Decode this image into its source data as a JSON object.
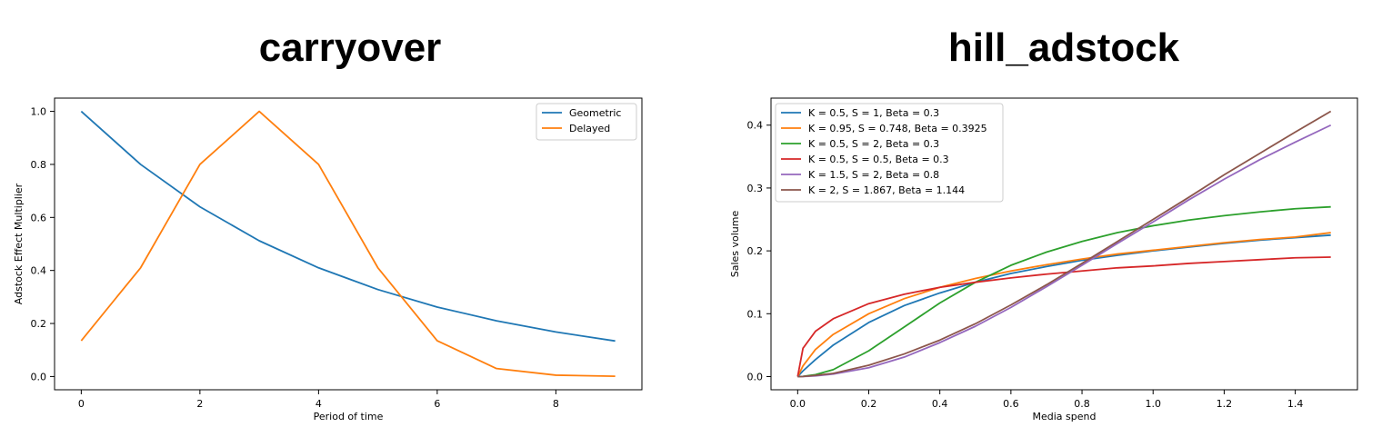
{
  "chart_data": [
    {
      "type": "line",
      "title": "carryover",
      "xlabel": "Period of time",
      "ylabel": "Adstock Effect Multiplier",
      "xlim": [
        -0.45,
        9.45
      ],
      "ylim": [
        -0.05,
        1.05
      ],
      "xticks": [
        0,
        2,
        4,
        6,
        8
      ],
      "xtick_labels": [
        "0",
        "2",
        "4",
        "6",
        "8"
      ],
      "yticks": [
        0,
        0.2,
        0.4,
        0.6,
        0.8,
        1.0
      ],
      "ytick_labels": [
        "0.0",
        "0.2",
        "0.4",
        "0.6",
        "0.8",
        "1.0"
      ],
      "grid": false,
      "legend_position": "top-right",
      "series": [
        {
          "name": "Geometric",
          "color": "#1f77b4",
          "x": [
            0,
            1,
            2,
            3,
            4,
            5,
            6,
            7,
            8,
            9
          ],
          "y": [
            1.0,
            0.8,
            0.64,
            0.512,
            0.41,
            0.328,
            0.262,
            0.21,
            0.168,
            0.134
          ]
        },
        {
          "name": "Delayed",
          "color": "#ff7f0e",
          "x": [
            0,
            1,
            2,
            3,
            4,
            5,
            6,
            7,
            8,
            9
          ],
          "y": [
            0.135,
            0.41,
            0.8,
            1.0,
            0.8,
            0.41,
            0.135,
            0.03,
            0.005,
            0.001
          ]
        }
      ]
    },
    {
      "type": "line",
      "title": "hill_adstock",
      "xlabel": "Media spend",
      "ylabel": "Sales volume",
      "xlim": [
        -0.075,
        1.575
      ],
      "ylim": [
        -0.021,
        0.443
      ],
      "xticks": [
        0,
        0.2,
        0.4,
        0.6,
        0.8,
        1.0,
        1.2,
        1.4
      ],
      "xtick_labels": [
        "0.0",
        "0.2",
        "0.4",
        "0.6",
        "0.8",
        "1.0",
        "1.2",
        "1.4"
      ],
      "yticks": [
        0,
        0.1,
        0.2,
        0.3,
        0.4
      ],
      "ytick_labels": [
        "0.0",
        "0.1",
        "0.2",
        "0.3",
        "0.4"
      ],
      "grid": false,
      "legend_position": "top-left",
      "x": [
        0,
        0.015,
        0.05,
        0.1,
        0.2,
        0.3,
        0.4,
        0.5,
        0.6,
        0.7,
        0.8,
        0.9,
        1.0,
        1.1,
        1.2,
        1.3,
        1.4,
        1.5
      ],
      "series": [
        {
          "name": "K = 0.5, S = 1, Beta = 0.3",
          "color": "#1f77b4",
          "y": [
            0,
            0.009,
            0.027,
            0.05,
            0.086,
            0.113,
            0.133,
            0.15,
            0.164,
            0.175,
            0.185,
            0.193,
            0.2,
            0.206,
            0.212,
            0.217,
            0.221,
            0.225
          ]
        },
        {
          "name": "K = 0.95, S = 0.748, Beta = 0.3925",
          "color": "#ff7f0e",
          "y": [
            0,
            0.017,
            0.043,
            0.067,
            0.1,
            0.124,
            0.142,
            0.156,
            0.168,
            0.178,
            0.187,
            0.195,
            0.201,
            0.207,
            0.213,
            0.218,
            0.222,
            0.229
          ]
        },
        {
          "name": "K = 0.5, S = 2, Beta = 0.3",
          "color": "#2ca02c",
          "y": [
            0,
            0.0003,
            0.003,
            0.011,
            0.041,
            0.079,
            0.117,
            0.15,
            0.177,
            0.198,
            0.215,
            0.229,
            0.24,
            0.249,
            0.256,
            0.262,
            0.267,
            0.27
          ]
        },
        {
          "name": "K = 0.5, S = 0.5, Beta = 0.3",
          "color": "#d62728",
          "y": [
            0,
            0.045,
            0.072,
            0.092,
            0.116,
            0.131,
            0.142,
            0.15,
            0.157,
            0.163,
            0.168,
            0.173,
            0.176,
            0.18,
            0.183,
            0.186,
            0.189,
            0.19
          ]
        },
        {
          "name": "K = 1.5, S = 2, Beta = 0.8",
          "color": "#9467bd",
          "y": [
            0,
            0.0001,
            0.001,
            0.004,
            0.014,
            0.031,
            0.054,
            0.08,
            0.11,
            0.143,
            0.177,
            0.212,
            0.246,
            0.281,
            0.314,
            0.345,
            0.373,
            0.4
          ]
        },
        {
          "name": "K = 2, S = 1.867, Beta = 1.144",
          "color": "#8c564b",
          "y": [
            0,
            0.0001,
            0.002,
            0.005,
            0.018,
            0.036,
            0.058,
            0.084,
            0.114,
            0.146,
            0.18,
            0.215,
            0.25,
            0.285,
            0.321,
            0.355,
            0.389,
            0.422
          ]
        }
      ]
    }
  ]
}
